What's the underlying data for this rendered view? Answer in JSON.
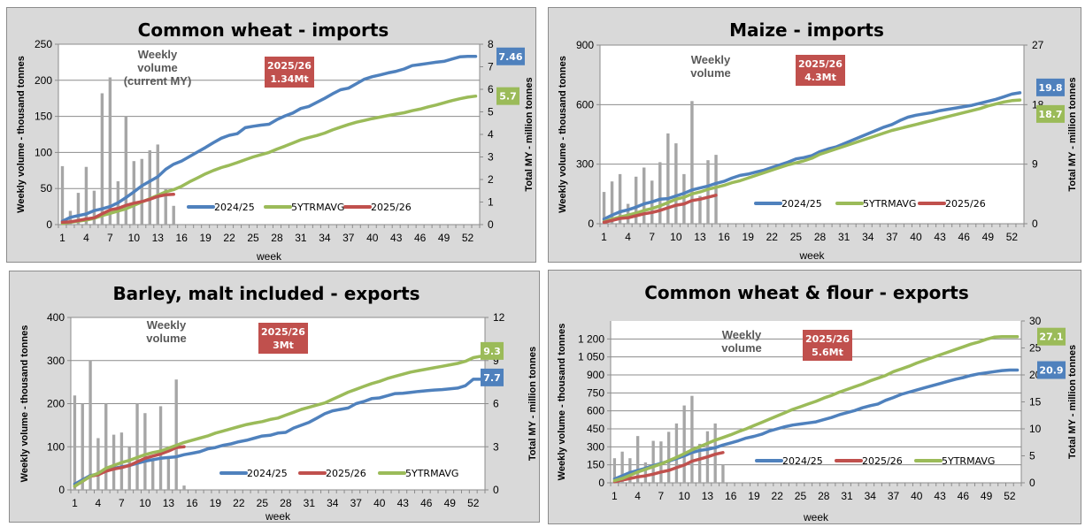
{
  "colors": {
    "series_2024_25": "#4f81bd",
    "series_5yr": "#9bbb59",
    "series_2025_26": "#c0504d",
    "bars": "#a6a6a6",
    "annotation_bg": "#c0504d",
    "panel_bg": "#d9d9d9"
  },
  "chart_data": [
    {
      "id": "wheat-imports",
      "type": "bar+line",
      "title": "Common wheat - imports",
      "xlabel": "week",
      "ylabel_left": "Weekly volume - thousand tonnes",
      "ylabel_right": "Total MY - million tonnes",
      "ylim_left": [
        0,
        250
      ],
      "ylim_right": [
        0,
        8
      ],
      "yticks_left": [
        "0",
        "50",
        "100",
        "150",
        "200",
        "250"
      ],
      "yticks_right": [
        "0",
        "1",
        "2",
        "3",
        "4",
        "5",
        "6",
        "7",
        "8"
      ],
      "xticks": [
        "1",
        "4",
        "7",
        "10",
        "13",
        "16",
        "19",
        "22",
        "25",
        "28",
        "31",
        "34",
        "37",
        "40",
        "43",
        "46",
        "49",
        "52"
      ],
      "bar_label": "Weekly volume (current MY)",
      "annotation": {
        "line1": "2025/26",
        "line2": "1.34Mt"
      },
      "legend": [
        "2024/25",
        "5YTRMAVG",
        "2025/26"
      ],
      "legend_position": "bottom-center",
      "bars": {
        "name": "Weekly volume",
        "weeks_from": 1,
        "values": [
          81,
          19,
          44,
          80,
          47,
          182,
          204,
          60,
          150,
          88,
          91,
          103,
          111,
          49,
          26
        ]
      },
      "series": [
        {
          "name": "2024/25",
          "key": "series_2024_25",
          "axis": "right",
          "end_label": "7.46",
          "values": [
            0.15,
            0.32,
            0.4,
            0.47,
            0.62,
            0.7,
            0.8,
            0.97,
            1.2,
            1.45,
            1.72,
            1.92,
            2.12,
            2.45,
            2.68,
            2.82,
            3.02,
            3.22,
            3.42,
            3.63,
            3.83,
            3.96,
            4.03,
            4.3,
            4.36,
            4.41,
            4.45,
            4.66,
            4.82,
            4.95,
            5.15,
            5.24,
            5.42,
            5.6,
            5.8,
            5.98,
            6.05,
            6.25,
            6.45,
            6.56,
            6.64,
            6.73,
            6.8,
            6.9,
            7.05,
            7.1,
            7.15,
            7.2,
            7.24,
            7.34,
            7.44,
            7.46,
            7.46
          ]
        },
        {
          "name": "5YTRMAVG",
          "key": "series_5yr",
          "axis": "right",
          "end_label": "5.7",
          "values": [
            0.05,
            0.1,
            0.15,
            0.2,
            0.28,
            0.4,
            0.5,
            0.6,
            0.7,
            0.85,
            1.0,
            1.15,
            1.3,
            1.45,
            1.55,
            1.7,
            1.9,
            2.07,
            2.25,
            2.4,
            2.53,
            2.63,
            2.75,
            2.88,
            3.0,
            3.1,
            3.2,
            3.35,
            3.48,
            3.62,
            3.76,
            3.86,
            3.95,
            4.06,
            4.2,
            4.32,
            4.44,
            4.54,
            4.62,
            4.7,
            4.77,
            4.84,
            4.9,
            4.96,
            5.05,
            5.12,
            5.22,
            5.3,
            5.4,
            5.5,
            5.58,
            5.65,
            5.7
          ]
        },
        {
          "name": "2025/26",
          "key": "series_2025_26",
          "axis": "right",
          "end_label": "",
          "values": [
            0.1,
            0.12,
            0.18,
            0.25,
            0.3,
            0.48,
            0.65,
            0.72,
            0.85,
            0.95,
            1.02,
            1.12,
            1.25,
            1.32,
            1.34
          ]
        }
      ]
    },
    {
      "id": "maize-imports",
      "type": "bar+line",
      "title": "Maize - imports",
      "xlabel": "week",
      "ylabel_left": "Weekly volume - thousand tonnes",
      "ylabel_right": "Total MY - million tonnes",
      "ylim_left": [
        0,
        900
      ],
      "ylim_right": [
        0,
        27
      ],
      "yticks_left": [
        "0",
        "300",
        "600",
        "900"
      ],
      "yticks_right": [
        "0",
        "9",
        "18",
        "27"
      ],
      "xticks": [
        "1",
        "4",
        "7",
        "10",
        "13",
        "16",
        "19",
        "22",
        "25",
        "28",
        "31",
        "34",
        "37",
        "40",
        "43",
        "46",
        "49",
        "52"
      ],
      "bar_label": "Weekly volume",
      "annotation": {
        "line1": "2025/26",
        "line2": "4.3Mt"
      },
      "legend": [
        "2024/25",
        "5YTRMAVG",
        "2025/26"
      ],
      "legend_position": "bottom-center",
      "bars": {
        "name": "Weekly volume",
        "weeks_from": 1,
        "values": [
          160,
          213,
          250,
          100,
          237,
          283,
          217,
          310,
          455,
          405,
          250,
          618,
          140,
          320,
          347
        ]
      },
      "series": [
        {
          "name": "2024/25",
          "key": "series_2024_25",
          "axis": "right",
          "end_label": "19.8",
          "values": [
            0.7,
            1.3,
            1.8,
            2.1,
            2.5,
            3.0,
            3.3,
            3.7,
            3.8,
            4.2,
            4.6,
            5.1,
            5.4,
            5.7,
            6.1,
            6.4,
            6.9,
            7.3,
            7.5,
            7.8,
            8.1,
            8.5,
            8.9,
            9.3,
            9.8,
            10.0,
            10.3,
            10.9,
            11.3,
            11.6,
            12.1,
            12.6,
            13.1,
            13.6,
            14.1,
            14.6,
            15.0,
            15.6,
            16.1,
            16.4,
            16.6,
            16.8,
            17.1,
            17.3,
            17.5,
            17.7,
            17.9,
            18.2,
            18.5,
            18.8,
            19.2,
            19.6,
            19.8
          ]
        },
        {
          "name": "5YTRMAVG",
          "key": "series_5yr",
          "axis": "right",
          "end_label": "18.7",
          "values": [
            0.3,
            0.7,
            1.0,
            1.3,
            1.6,
            2.0,
            2.3,
            2.7,
            3.2,
            3.7,
            4.0,
            4.5,
            4.8,
            5.2,
            5.5,
            5.8,
            6.2,
            6.5,
            6.9,
            7.3,
            7.7,
            8.1,
            8.5,
            8.9,
            9.2,
            9.5,
            9.9,
            10.5,
            10.9,
            11.3,
            11.7,
            12.1,
            12.5,
            12.9,
            13.3,
            13.7,
            14.1,
            14.4,
            14.7,
            15.0,
            15.3,
            15.6,
            15.9,
            16.2,
            16.5,
            16.8,
            17.1,
            17.4,
            17.8,
            18.1,
            18.4,
            18.6,
            18.7
          ]
        },
        {
          "name": "2025/26",
          "key": "series_2025_26",
          "axis": "right",
          "end_label": "",
          "values": [
            0.2,
            0.5,
            0.8,
            0.9,
            1.2,
            1.5,
            1.7,
            2.0,
            2.4,
            2.8,
            3.0,
            3.5,
            3.7,
            4.0,
            4.3
          ]
        }
      ]
    },
    {
      "id": "barley-exports",
      "type": "bar+line",
      "title": "Barley, malt included - exports",
      "xlabel": "week",
      "ylabel_left": "Weekly volume - thousand tonnes",
      "ylabel_right": "Total MY - million tonnes",
      "ylim_left": [
        0,
        400
      ],
      "ylim_right": [
        0,
        12
      ],
      "yticks_left": [
        "0",
        "100",
        "200",
        "300",
        "400"
      ],
      "yticks_right": [
        "0",
        "3",
        "6",
        "9",
        "12"
      ],
      "xticks": [
        "1",
        "4",
        "7",
        "10",
        "13",
        "16",
        "19",
        "22",
        "25",
        "28",
        "31",
        "34",
        "37",
        "40",
        "43",
        "46",
        "49",
        "52"
      ],
      "bar_label": "Weekly volume",
      "annotation": {
        "line1": "2025/26",
        "line2": "3Mt"
      },
      "legend": [
        "2024/25",
        "2025/26",
        "5YTRMAVG"
      ],
      "legend_position": "bottom-center",
      "bars": {
        "name": "Weekly volume",
        "weeks_from": 1,
        "values": [
          219,
          200,
          300,
          120,
          200,
          128,
          133,
          100,
          200,
          178,
          68,
          194,
          75,
          256,
          10
        ]
      },
      "series": [
        {
          "name": "2024/25",
          "key": "series_2024_25",
          "axis": "right",
          "end_label": "7.7",
          "values": [
            0.4,
            0.7,
            1.0,
            1.1,
            1.35,
            1.5,
            1.6,
            1.7,
            1.85,
            2.0,
            2.1,
            2.2,
            2.25,
            2.3,
            2.45,
            2.55,
            2.65,
            2.85,
            2.95,
            3.1,
            3.2,
            3.35,
            3.45,
            3.6,
            3.75,
            3.8,
            3.95,
            4.0,
            4.3,
            4.5,
            4.7,
            5.0,
            5.3,
            5.5,
            5.6,
            5.7,
            6.0,
            6.15,
            6.35,
            6.4,
            6.55,
            6.7,
            6.72,
            6.78,
            6.85,
            6.9,
            6.95,
            6.98,
            7.03,
            7.08,
            7.25,
            7.7,
            7.7
          ]
        },
        {
          "name": "2025/26",
          "key": "series_2025_26",
          "axis": "right",
          "end_label": "",
          "values": [
            0.25,
            0.6,
            0.95,
            1.05,
            1.3,
            1.45,
            1.55,
            1.7,
            1.95,
            2.2,
            2.35,
            2.5,
            2.7,
            2.95,
            3.0
          ]
        },
        {
          "name": "5YTRMAVG",
          "key": "series_5yr",
          "axis": "right",
          "end_label": "9.3",
          "values": [
            0.25,
            0.6,
            0.95,
            1.15,
            1.5,
            1.7,
            1.9,
            2.05,
            2.25,
            2.45,
            2.6,
            2.7,
            2.9,
            3.1,
            3.3,
            3.45,
            3.6,
            3.75,
            3.95,
            4.1,
            4.25,
            4.4,
            4.55,
            4.65,
            4.75,
            4.9,
            5.0,
            5.2,
            5.4,
            5.6,
            5.75,
            5.9,
            6.05,
            6.3,
            6.55,
            6.8,
            7.0,
            7.2,
            7.4,
            7.55,
            7.75,
            7.9,
            8.05,
            8.2,
            8.3,
            8.4,
            8.5,
            8.6,
            8.7,
            8.8,
            8.95,
            9.2,
            9.3
          ]
        }
      ]
    },
    {
      "id": "wheat-flour-exports",
      "type": "bar+line",
      "title": "Common wheat & flour - exports",
      "xlabel": "week",
      "ylabel_left": "Weekly volume - thousand tonnes",
      "ylabel_right": "Total MY - million tonnes",
      "ylim_left": [
        0,
        1350
      ],
      "ylim_right": [
        0,
        30
      ],
      "yticks_left": [
        "0",
        "150",
        "300",
        "450",
        "600",
        "750",
        "900",
        "1 050",
        "1 200"
      ],
      "yticks_right": [
        "0",
        "5",
        "10",
        "15",
        "20",
        "25",
        "30"
      ],
      "xticks": [
        "1",
        "4",
        "7",
        "10",
        "13",
        "16",
        "19",
        "22",
        "25",
        "28",
        "31",
        "34",
        "37",
        "40",
        "43",
        "46",
        "49",
        "52"
      ],
      "bar_label": "Weekly volume",
      "annotation": {
        "line1": "2025/26",
        "line2": "5.6Mt"
      },
      "legend": [
        "2024/25",
        "2025/26",
        "5YTRMAVG"
      ],
      "legend_position": "bottom-center",
      "bars": {
        "name": "Weekly volume",
        "weeks_from": 1,
        "values": [
          205,
          260,
          205,
          390,
          170,
          350,
          345,
          425,
          495,
          645,
          725,
          325,
          430,
          495,
          150
        ]
      },
      "series": [
        {
          "name": "2024/25",
          "key": "series_2024_25",
          "axis": "right",
          "end_label": "20.9",
          "values": [
            0.7,
            1.3,
            1.9,
            2.3,
            2.7,
            3.2,
            3.6,
            4.0,
            4.5,
            5.0,
            5.6,
            6.0,
            6.2,
            6.5,
            7.0,
            7.4,
            7.8,
            8.3,
            8.6,
            9.0,
            9.6,
            10.0,
            10.4,
            10.7,
            10.9,
            11.1,
            11.3,
            11.7,
            12.1,
            12.6,
            13.0,
            13.4,
            13.9,
            14.3,
            14.6,
            15.3,
            15.8,
            16.4,
            16.8,
            17.2,
            17.6,
            18.0,
            18.4,
            18.8,
            19.2,
            19.5,
            19.9,
            20.2,
            20.4,
            20.6,
            20.8,
            20.9,
            20.9
          ]
        },
        {
          "name": "2025/26",
          "key": "series_2025_26",
          "axis": "right",
          "end_label": "",
          "values": [
            0.2,
            0.5,
            0.8,
            1.1,
            1.3,
            1.6,
            2.0,
            2.3,
            2.8,
            3.3,
            4.0,
            4.4,
            4.8,
            5.3,
            5.6
          ]
        },
        {
          "name": "5YTRMAVG",
          "key": "series_5yr",
          "axis": "right",
          "end_label": "27.1",
          "values": [
            0.4,
            0.8,
            1.4,
            2.0,
            2.5,
            3.0,
            3.5,
            4.1,
            4.7,
            5.4,
            6.1,
            6.7,
            7.3,
            7.9,
            8.4,
            8.9,
            9.5,
            10.0,
            10.6,
            11.2,
            11.8,
            12.4,
            13.0,
            13.6,
            14.1,
            14.6,
            15.1,
            15.7,
            16.2,
            16.8,
            17.3,
            17.8,
            18.3,
            18.9,
            19.4,
            19.9,
            20.6,
            21.1,
            21.6,
            22.2,
            22.7,
            23.2,
            23.7,
            24.2,
            24.7,
            25.2,
            25.7,
            26.1,
            26.6,
            27.0,
            27.1,
            27.1,
            27.1
          ]
        }
      ]
    }
  ]
}
